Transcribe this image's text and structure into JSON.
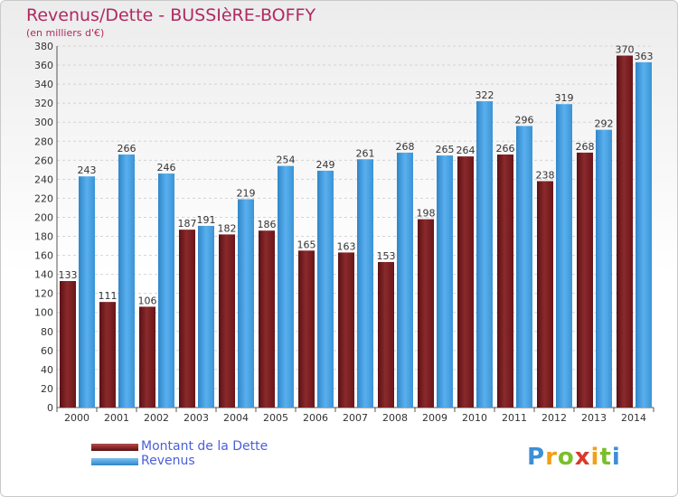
{
  "chart_data": {
    "type": "bar",
    "title": "Revenus/Dette - BUSSIèRE-BOFFY",
    "subtitle": "(en milliers d'€)",
    "categories": [
      "2000",
      "2001",
      "2002",
      "2003",
      "2004",
      "2005",
      "2006",
      "2007",
      "2008",
      "2009",
      "2010",
      "2011",
      "2012",
      "2013",
      "2014"
    ],
    "series": [
      {
        "name": "Montant de la Dette",
        "color": "#7a1f22",
        "values": [
          133,
          111,
          106,
          187,
          182,
          186,
          165,
          163,
          153,
          198,
          264,
          266,
          238,
          268,
          370
        ]
      },
      {
        "name": "Revenus",
        "color": "#4aa3e6",
        "values": [
          243,
          266,
          246,
          191,
          219,
          254,
          249,
          261,
          268,
          265,
          322,
          296,
          319,
          292,
          363
        ]
      }
    ],
    "ylim": [
      0,
      380
    ],
    "yticks": [
      0,
      20,
      40,
      60,
      80,
      100,
      120,
      140,
      160,
      180,
      200,
      220,
      240,
      260,
      280,
      300,
      320,
      340,
      360,
      380
    ],
    "grid": true,
    "legend_position": "bottom-left"
  },
  "logo": {
    "letters": [
      "P",
      "r",
      "o",
      "x",
      "i",
      "t",
      "i"
    ],
    "colors": [
      "#3d8fd6",
      "#f2a014",
      "#7bbf2a",
      "#d93a2b",
      "#f2a014",
      "#7bbf2a",
      "#3d8fd6"
    ]
  }
}
